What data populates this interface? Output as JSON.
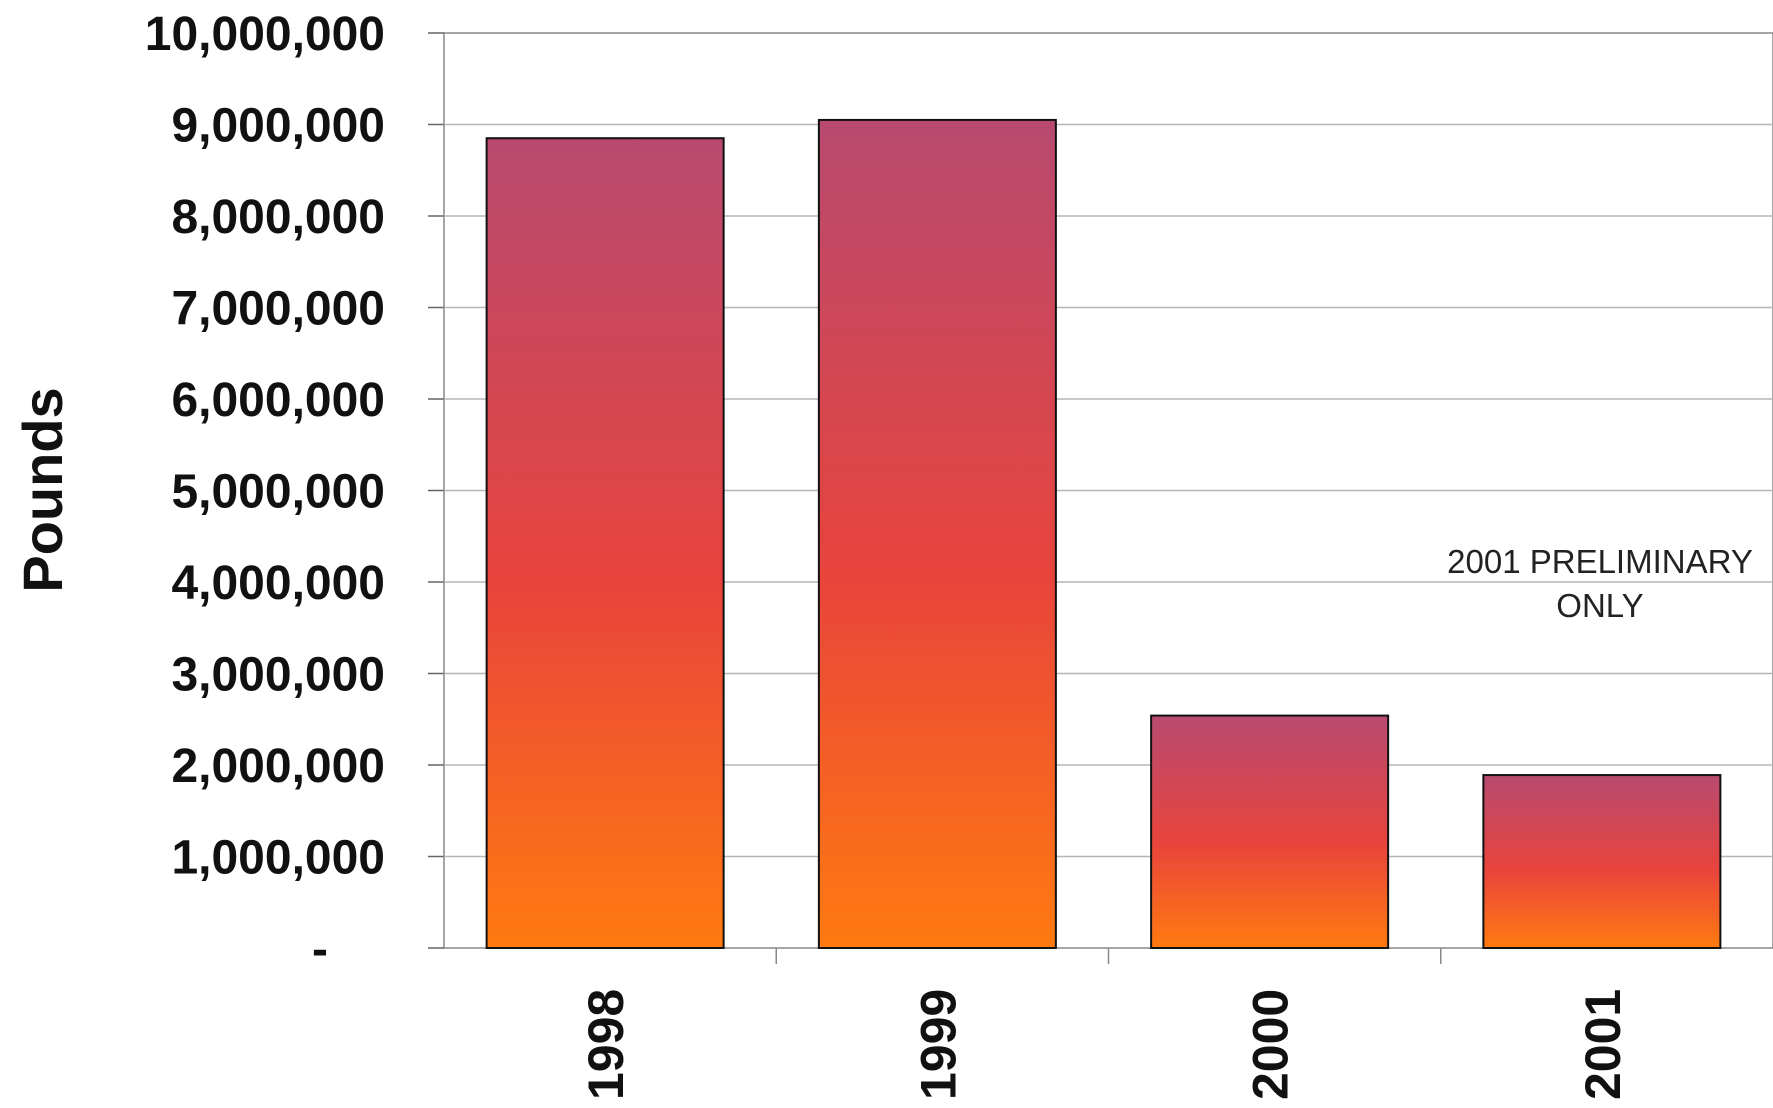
{
  "chart_data": {
    "type": "bar",
    "categories": [
      "1998",
      "1999",
      "2000",
      "2001"
    ],
    "values": [
      8850000,
      9050000,
      2540000,
      1890000
    ],
    "ylabel": "Pounds",
    "ylim": [
      0,
      10000000
    ],
    "y_ticks": [
      {
        "value": 0,
        "label": "-"
      },
      {
        "value": 1000000,
        "label": "1,000,000"
      },
      {
        "value": 2000000,
        "label": "2,000,000"
      },
      {
        "value": 3000000,
        "label": "3,000,000"
      },
      {
        "value": 4000000,
        "label": "4,000,000"
      },
      {
        "value": 5000000,
        "label": "5,000,000"
      },
      {
        "value": 6000000,
        "label": "6,000,000"
      },
      {
        "value": 7000000,
        "label": "7,000,000"
      },
      {
        "value": 8000000,
        "label": "8,000,000"
      },
      {
        "value": 9000000,
        "label": "9,000,000"
      },
      {
        "value": 10000000,
        "label": "10,000,000"
      }
    ],
    "grid": true,
    "annotation": {
      "lines": [
        "2001 PRELIMINARY",
        "ONLY"
      ]
    },
    "colors": {
      "bar_top": "#b84a70",
      "bar_mid": "#e8443c",
      "bar_bottom": "#ff7a10",
      "grid": "#b5b5b5",
      "bar_border": "#111111"
    }
  }
}
